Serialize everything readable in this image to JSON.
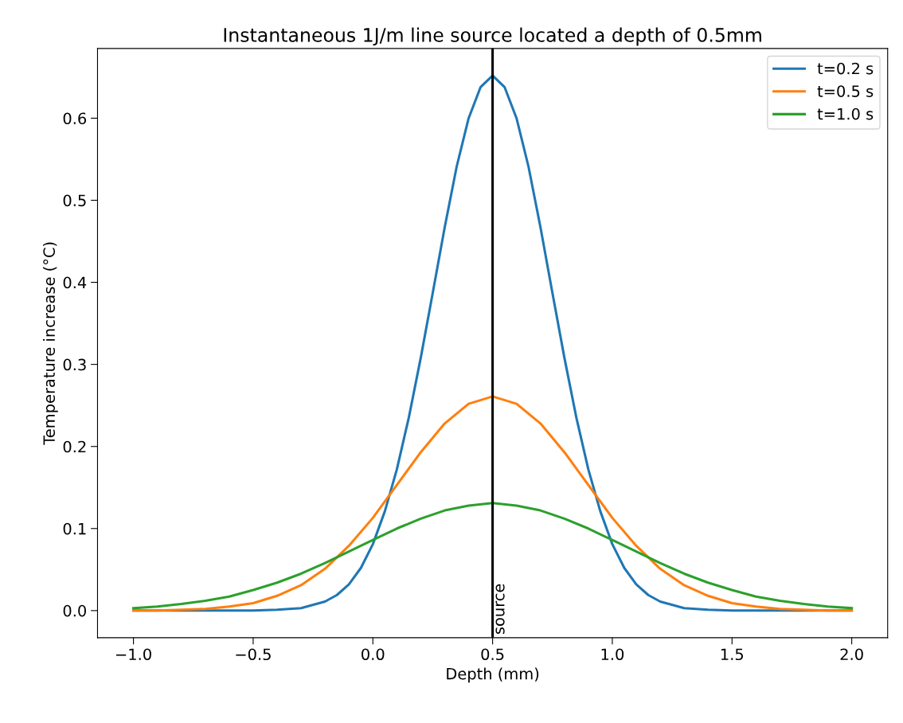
{
  "chart_data": {
    "type": "line",
    "title": "Instantaneous 1J/m line source located a depth of 0.5mm",
    "xlabel": "Depth (mm)",
    "ylabel": "Temperature increase (°C)",
    "x": [
      -1.0,
      -0.9,
      -0.8,
      -0.7,
      -0.6,
      -0.5,
      -0.4,
      -0.3,
      -0.2,
      -0.1,
      0.0,
      0.1,
      0.2,
      0.3,
      0.4,
      0.5,
      0.6,
      0.7,
      0.8,
      0.9,
      1.0,
      1.1,
      1.2,
      1.3,
      1.4,
      1.5,
      1.6,
      1.7,
      1.8,
      1.9,
      2.0
    ],
    "series": [
      {
        "name": "t=0.2 s",
        "color": "#1f77b4",
        "x": [
          -1.0,
          -0.5,
          -0.4,
          -0.3,
          -0.2,
          -0.15,
          -0.1,
          -0.05,
          0.0,
          0.05,
          0.1,
          0.15,
          0.2,
          0.25,
          0.3,
          0.35,
          0.4,
          0.45,
          0.5,
          0.55,
          0.6,
          0.65,
          0.7,
          0.75,
          0.8,
          0.85,
          0.9,
          0.95,
          1.0,
          1.05,
          1.1,
          1.15,
          1.2,
          1.3,
          1.4,
          1.5,
          2.0
        ],
        "values": [
          0,
          0,
          0.001,
          0.003,
          0.011,
          0.019,
          0.032,
          0.052,
          0.081,
          0.121,
          0.172,
          0.235,
          0.308,
          0.387,
          0.467,
          0.541,
          0.6,
          0.638,
          0.652,
          0.638,
          0.6,
          0.541,
          0.467,
          0.387,
          0.308,
          0.235,
          0.172,
          0.121,
          0.081,
          0.052,
          0.032,
          0.019,
          0.011,
          0.003,
          0.001,
          0,
          0
        ]
      },
      {
        "name": "t=0.5 s",
        "color": "#ff7f0e",
        "values": [
          0,
          0,
          0.001,
          0.002,
          0.005,
          0.009,
          0.018,
          0.031,
          0.051,
          0.079,
          0.113,
          0.153,
          0.193,
          0.228,
          0.252,
          0.261,
          0.252,
          0.228,
          0.193,
          0.153,
          0.113,
          0.079,
          0.051,
          0.031,
          0.018,
          0.009,
          0.005,
          0.002,
          0.001,
          0,
          0
        ]
      },
      {
        "name": "t=1.0 s",
        "color": "#2ca02c",
        "values": [
          0.003,
          0.005,
          0.008,
          0.012,
          0.017,
          0.025,
          0.034,
          0.045,
          0.058,
          0.072,
          0.086,
          0.1,
          0.112,
          0.122,
          0.128,
          0.131,
          0.128,
          0.122,
          0.112,
          0.1,
          0.086,
          0.072,
          0.058,
          0.045,
          0.034,
          0.025,
          0.017,
          0.012,
          0.008,
          0.005,
          0.003
        ]
      }
    ],
    "ref_lines": [
      {
        "axis": "x",
        "value": 0.5,
        "label": "source",
        "color": "#000000"
      }
    ],
    "xlim": [
      -1.15,
      2.15
    ],
    "xticks": [
      {
        "value": -1.0,
        "label": "−1.0"
      },
      {
        "value": -0.5,
        "label": "−0.5"
      },
      {
        "value": 0.0,
        "label": "0.0"
      },
      {
        "value": 0.5,
        "label": "0.5"
      },
      {
        "value": 1.0,
        "label": "1.0"
      },
      {
        "value": 1.5,
        "label": "1.5"
      },
      {
        "value": 2.0,
        "label": "2.0"
      }
    ],
    "ylim": [
      -0.033,
      0.685
    ],
    "yticks": [
      {
        "value": 0.0,
        "label": "0.0"
      },
      {
        "value": 0.1,
        "label": "0.1"
      },
      {
        "value": 0.2,
        "label": "0.2"
      },
      {
        "value": 0.3,
        "label": "0.3"
      },
      {
        "value": 0.4,
        "label": "0.4"
      },
      {
        "value": 0.5,
        "label": "0.5"
      },
      {
        "value": 0.6,
        "label": "0.6"
      }
    ],
    "legend": "top right",
    "grid": false
  }
}
